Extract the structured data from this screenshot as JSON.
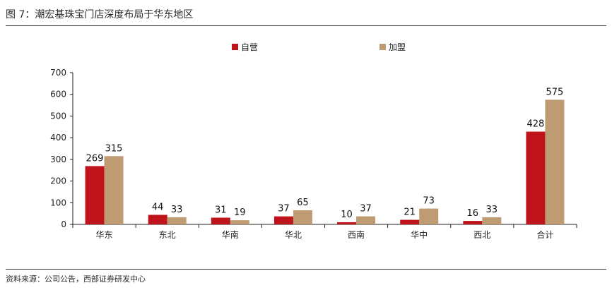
{
  "figure": {
    "title": "图 7：潮宏基珠宝门店深度布局于华东地区",
    "source": "资料来源：公司公告，西部证券研发中心"
  },
  "chart_data": {
    "type": "bar",
    "categories": [
      "华东",
      "东北",
      "华南",
      "华北",
      "西南",
      "华中",
      "西北",
      "合计"
    ],
    "series": [
      {
        "name": "自营",
        "color": "#c0141c",
        "values": [
          269,
          44,
          31,
          37,
          10,
          21,
          16,
          428
        ]
      },
      {
        "name": "加盟",
        "color": "#bf9b73",
        "values": [
          315,
          33,
          19,
          65,
          37,
          73,
          33,
          575
        ]
      }
    ],
    "ylim": [
      0,
      700
    ],
    "yticks": [
      0,
      100,
      200,
      300,
      400,
      500,
      600,
      700
    ],
    "legend_position": "top-center",
    "grid": false,
    "data_labels": true
  }
}
